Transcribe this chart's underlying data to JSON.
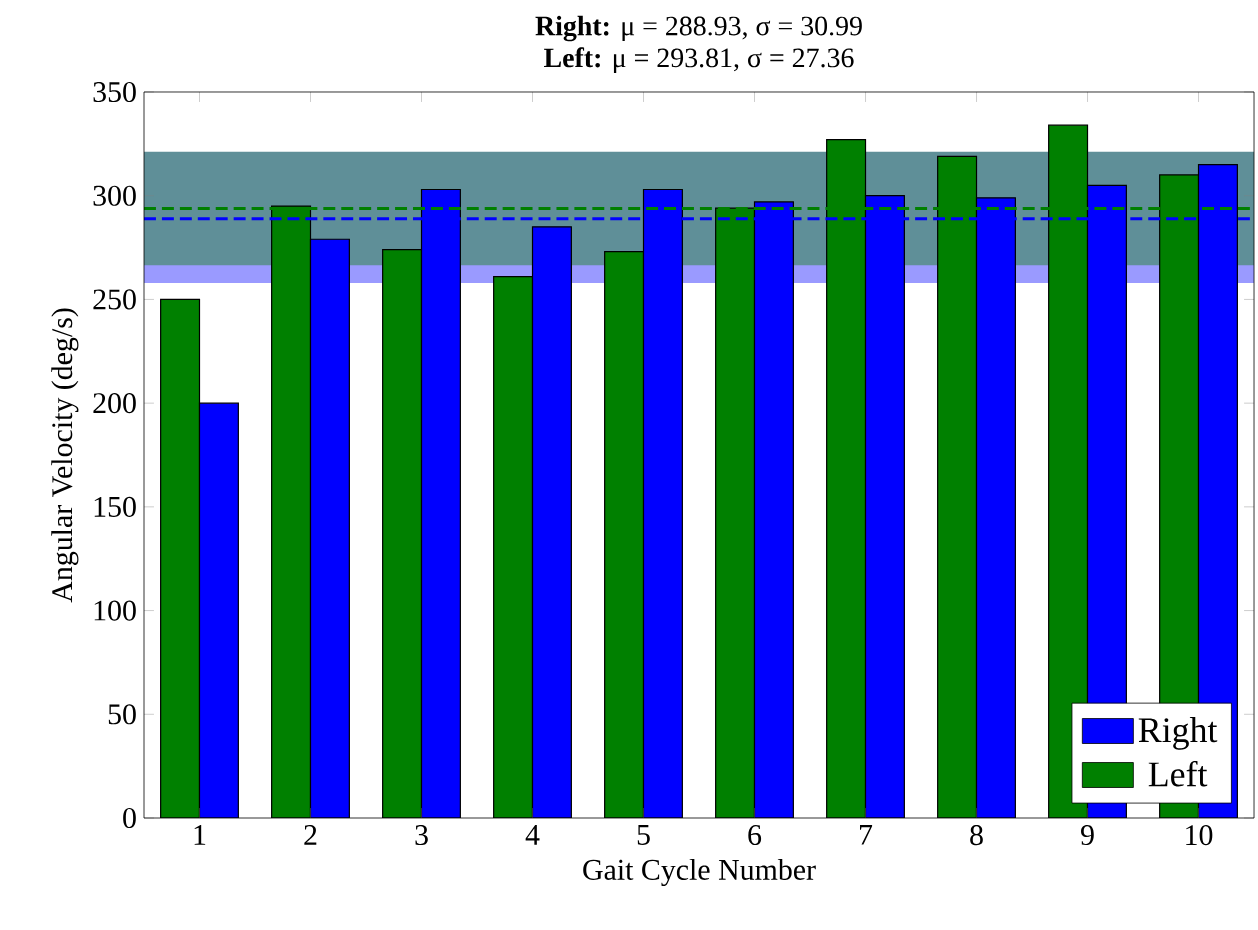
{
  "chart_data": {
    "type": "bar",
    "title": "**Right:** μ = 288.93,  σ = 30.99",
    "subtitle": "**Left:** μ = 293.81,  σ = 27.36",
    "xlabel": "Gait Cycle Number",
    "ylabel": "Angular Velocity (deg/s)",
    "categories": [
      "1",
      "2",
      "3",
      "4",
      "5",
      "6",
      "7",
      "8",
      "9",
      "10"
    ],
    "series": [
      {
        "name": "Left",
        "color": "#008000",
        "values": [
          250,
          295,
          274,
          261,
          273,
          294,
          327,
          319,
          334,
          310
        ]
      },
      {
        "name": "Right",
        "color": "#0000ff",
        "values": [
          200,
          279,
          303,
          285,
          303,
          297,
          300,
          299,
          305,
          315
        ]
      }
    ],
    "bands": [
      {
        "axis": "y",
        "from": 257.94,
        "to": 319.92,
        "color": "#9a9aff"
      },
      {
        "axis": "y",
        "from": 266.45,
        "to": 321.17,
        "color": "#5f8f98"
      }
    ],
    "ref_lines": [
      {
        "axis": "y",
        "value": 293.81,
        "color": "#008000",
        "line_style": "dashed"
      },
      {
        "axis": "y",
        "value": 288.93,
        "color": "#0000ff",
        "line_style": "dashed"
      }
    ],
    "ylim": [
      0,
      350
    ],
    "yticks": [
      0,
      50,
      100,
      150,
      200,
      250,
      300,
      350
    ],
    "legend": "bottom right",
    "grid": false
  }
}
